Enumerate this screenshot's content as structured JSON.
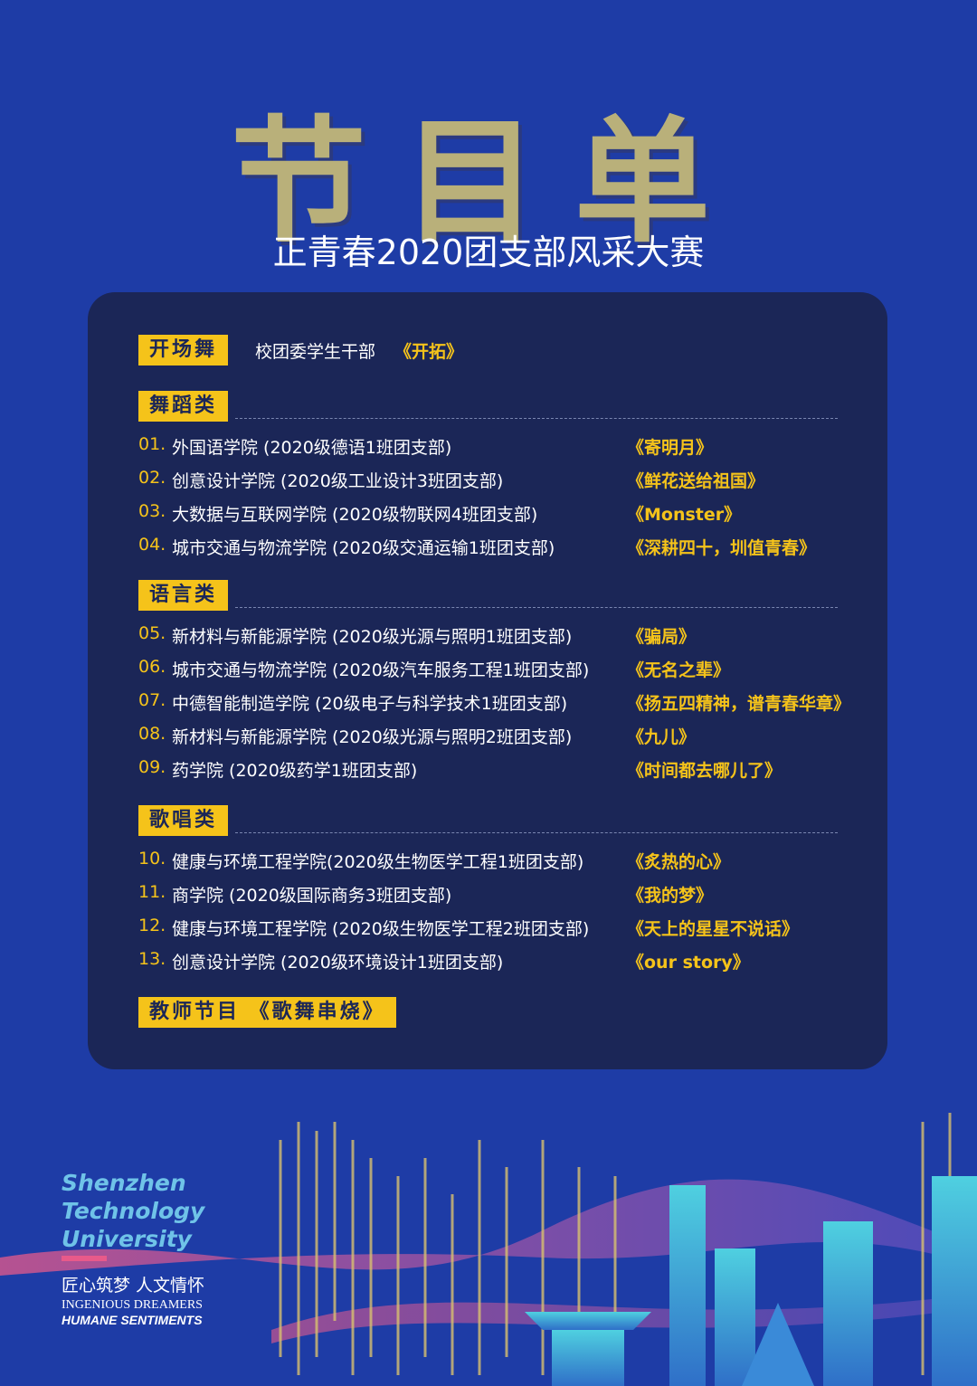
{
  "header": {
    "title": "节目单",
    "subtitle": "正青春2020团支部风采大赛"
  },
  "opening": {
    "label": "开场舞",
    "performer": "校团委学生干部",
    "work": "《开拓》"
  },
  "sections": [
    {
      "label": "舞蹈类",
      "items": [
        {
          "number": "01.",
          "performer": "外国语学院 (2020级德语1班团支部)",
          "work": "《寄明月》"
        },
        {
          "number": "02.",
          "performer": "创意设计学院 (2020级工业设计3班团支部)",
          "work": "《鲜花送给祖国》"
        },
        {
          "number": "03.",
          "performer": "大数据与互联网学院 (2020级物联网4班团支部)",
          "work": "《Monster》"
        },
        {
          "number": "04.",
          "performer": "城市交通与物流学院 (2020级交通运输1班团支部)",
          "work": "《深耕四十，圳值青春》"
        }
      ]
    },
    {
      "label": "语言类",
      "items": [
        {
          "number": "05.",
          "performer": "新材料与新能源学院 (2020级光源与照明1班团支部)",
          "work": "《骗局》"
        },
        {
          "number": "06.",
          "performer": "城市交通与物流学院 (2020级汽车服务工程1班团支部)",
          "work": "《无名之辈》"
        },
        {
          "number": "07.",
          "performer": "中德智能制造学院 (20级电子与科学技术1班团支部)",
          "work": "《扬五四精神，谱青春华章》"
        },
        {
          "number": "08.",
          "performer": "新材料与新能源学院 (2020级光源与照明2班团支部)",
          "work": "《九儿》"
        },
        {
          "number": "09.",
          "performer": "药学院 (2020级药学1班团支部)",
          "work": "《时间都去哪儿了》"
        }
      ]
    },
    {
      "label": "歌唱类",
      "items": [
        {
          "number": "10.",
          "performer": "健康与环境工程学院(2020级生物医学工程1班团支部)",
          "work": "《炙热的心》"
        },
        {
          "number": "11.",
          "performer": "商学院 (2020级国际商务3班团支部)",
          "work": "《我的梦》"
        },
        {
          "number": "12.",
          "performer": "健康与环境工程学院 (2020级生物医学工程2班团支部)",
          "work": "《天上的星星不说话》"
        },
        {
          "number": "13.",
          "performer": "创意设计学院 (2020级环境设计1班团支部)",
          "work": "《our story》"
        }
      ]
    }
  ],
  "teacher": {
    "label": "教师节目 《歌舞串烧》"
  },
  "logo": {
    "name_lines": [
      "Shenzhen",
      "Technology",
      "University"
    ],
    "motto_cn": "匠心筑梦  人文情怀",
    "motto_en_lines": [
      "INGENIOUS DREAMERS",
      "HUMANE SENTIMENTS"
    ]
  }
}
